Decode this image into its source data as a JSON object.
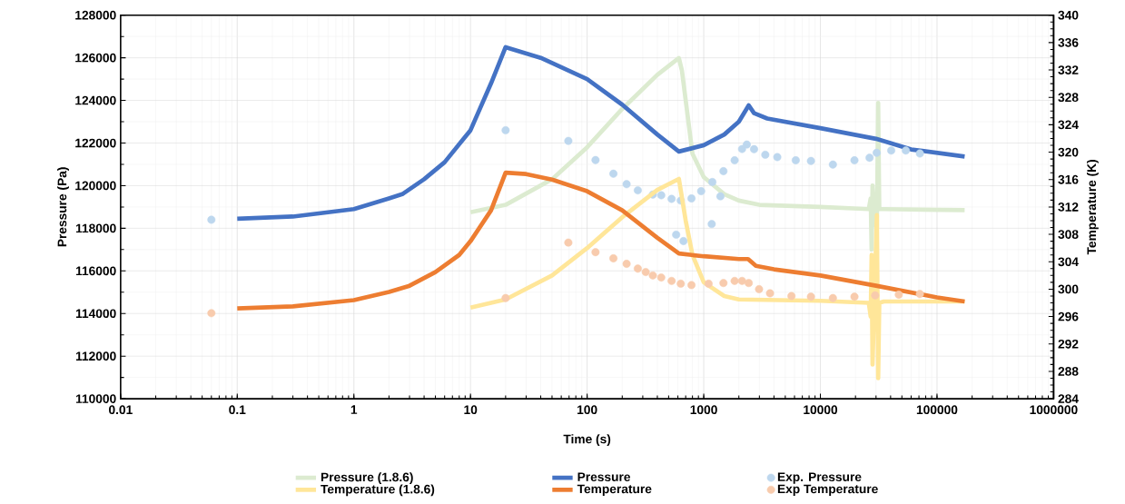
{
  "chart_data": {
    "type": "line",
    "xlabel": "Time (s)",
    "ylabel": "Pressure (Pa)",
    "y2label": "Temperature (K)",
    "log": "x",
    "xlim": [
      0.01,
      1000000
    ],
    "xticks": [
      0.01,
      0.1,
      1,
      10,
      100,
      1000,
      10000,
      100000,
      1000000
    ],
    "ylim": [
      110000,
      128000
    ],
    "yticks": [
      110000,
      112000,
      114000,
      116000,
      118000,
      120000,
      122000,
      124000,
      126000,
      128000
    ],
    "y2lim": [
      284,
      340
    ],
    "y2ticks": [
      284,
      288,
      292,
      296,
      300,
      304,
      308,
      312,
      316,
      320,
      324,
      328,
      332,
      336,
      340
    ],
    "grid": true,
    "legend": "bottom",
    "series": [
      {
        "name": "Pressure (1.8.6)",
        "type": "line",
        "marker": "none",
        "color": "#dcebd0",
        "x": [
          10,
          20,
          50,
          100,
          200,
          400,
          612,
          650,
          800,
          1000,
          1500,
          2000,
          3000,
          10000,
          26000,
          27000,
          27500,
          28000,
          29000,
          30500,
          31300,
          32000,
          35000,
          172600
        ],
        "values": [
          118750,
          119100,
          120300,
          121800,
          123600,
          125200,
          125990,
          125400,
          121500,
          120400,
          119600,
          119300,
          119100,
          119000,
          118900,
          119400,
          117000,
          120000,
          118500,
          117950,
          123880,
          118900,
          118900,
          118850
        ]
      },
      {
        "name": "Pressure",
        "type": "line",
        "marker": "none",
        "color": "#4472c4",
        "x": [
          0.1,
          0.3,
          1,
          2,
          2.6,
          4,
          6,
          10,
          15,
          20,
          40,
          100,
          200,
          400,
          612,
          1000,
          1500,
          2000,
          2430,
          2700,
          3500,
          10000,
          30000,
          60000,
          172600
        ],
        "values": [
          118450,
          118550,
          118900,
          119400,
          119600,
          120300,
          121100,
          122600,
          124800,
          126500,
          126000,
          125000,
          123800,
          122400,
          121600,
          121900,
          122400,
          123000,
          123770,
          123400,
          123150,
          122700,
          122200,
          121700,
          121370
        ]
      },
      {
        "name": "Exp. Pressure",
        "type": "scatter",
        "marker": "circle",
        "color": "#bdd7ee",
        "x": [
          0.06,
          20,
          69,
          118,
          168,
          218,
          272,
          366,
          432,
          530,
          580,
          635,
          670,
          785,
          950,
          1170,
          1185,
          1390,
          1475,
          1840,
          2130,
          2340,
          2700,
          3370,
          4270,
          6150,
          8300,
          12800,
          19600,
          26400,
          30400,
          40500,
          54000,
          71300
        ],
        "values": [
          118400,
          122600,
          122100,
          121200,
          120560,
          120070,
          119780,
          119580,
          119550,
          119380,
          117700,
          119300,
          117400,
          119400,
          119740,
          118200,
          120170,
          119500,
          120680,
          121190,
          121720,
          121930,
          121710,
          121450,
          121340,
          121190,
          121160,
          120990,
          121190,
          121310,
          121540,
          121650,
          121650,
          121510
        ]
      },
      {
        "name": "Temperature (1.8.6)",
        "type": "line",
        "axis": "y2",
        "marker": "none",
        "color": "#ffe699",
        "x": [
          10,
          20,
          50,
          100,
          200,
          400,
          612,
          700,
          800,
          1000,
          1500,
          2000,
          10000,
          26000,
          27000,
          27500,
          28000,
          29000,
          30500,
          31300,
          32000,
          35000,
          172600
        ],
        "values": [
          297.3,
          298.5,
          302,
          306,
          310.5,
          314.5,
          316.1,
          310,
          305,
          301,
          299,
          298.5,
          298.3,
          298,
          296,
          305,
          289,
          298,
          310.8,
          287,
          298,
          298.2,
          298.2
        ]
      },
      {
        "name": "Temperature",
        "type": "line",
        "axis": "y2",
        "marker": "none",
        "color": "#ed7d31",
        "x": [
          0.1,
          0.3,
          1,
          2,
          3,
          5,
          8,
          10,
          15,
          20,
          30,
          50,
          100,
          200,
          400,
          612,
          1000,
          2000,
          2400,
          2800,
          4000,
          10000,
          30000,
          100000,
          172600
        ],
        "values": [
          297.2,
          297.5,
          298.4,
          299.6,
          300.5,
          302.5,
          305,
          307,
          311.5,
          317,
          316.8,
          316,
          314.3,
          311.5,
          307.5,
          305.2,
          304.8,
          304.4,
          304.4,
          303.4,
          302.9,
          302,
          300.5,
          298.8,
          298.2
        ]
      },
      {
        "name": "Exp Temperature",
        "type": "scatter",
        "axis": "y2",
        "marker": "circle",
        "color": "#f8cbad",
        "x": [
          0.06,
          20,
          69,
          118,
          168,
          218,
          272,
          318,
          366,
          432,
          530,
          635,
          785,
          1100,
          1475,
          1840,
          2130,
          2430,
          2980,
          3700,
          5650,
          8300,
          12800,
          19600,
          29500,
          47000,
          71300
        ],
        "values": [
          296.5,
          298.7,
          306.8,
          305.4,
          304.5,
          303.7,
          303,
          302.5,
          302,
          301.7,
          301.2,
          300.8,
          300.6,
          300.8,
          300.9,
          301.2,
          301.2,
          300.9,
          300,
          299.4,
          299,
          298.9,
          298.7,
          298.9,
          299.1,
          299.2,
          299.3
        ]
      }
    ]
  }
}
